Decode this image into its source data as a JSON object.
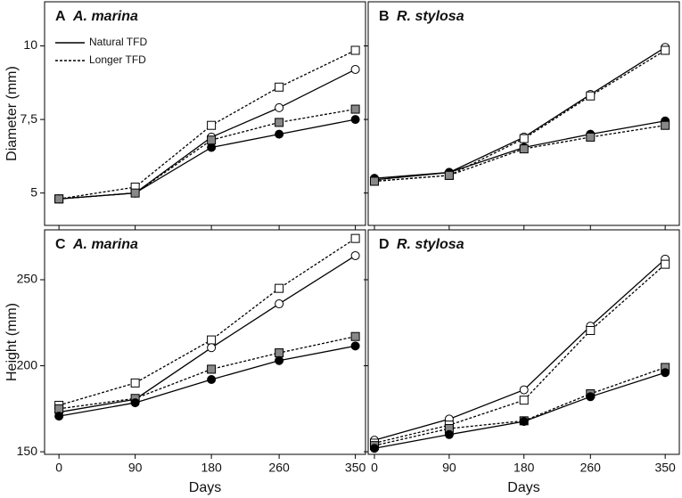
{
  "chart_data": [
    {
      "type": "line",
      "panel": "A",
      "title": "A. marina",
      "ylabel": "Diameter (mm)",
      "x": [
        0,
        90,
        180,
        260,
        350
      ],
      "xlim": [
        -17,
        362
      ],
      "xticks": [
        0,
        90,
        180,
        260,
        350
      ],
      "xtick_labels": false,
      "ylim": [
        3.9,
        11.5
      ],
      "yticks": [
        5,
        {
          "value": 7.5,
          "label": "7,5"
        },
        10
      ],
      "ytick_labels": true,
      "legend": [
        {
          "label": "Natural TFD",
          "dash": "solid"
        },
        {
          "label": "Longer TFD",
          "dash": "dashed"
        }
      ],
      "series": [
        {
          "marker": "circle",
          "fill": "#ffffff",
          "dash": "solid",
          "values": [
            4.8,
            5.0,
            6.9,
            7.9,
            9.2
          ]
        },
        {
          "marker": "circle",
          "fill": "#000000",
          "dash": "solid",
          "values": [
            4.8,
            5.0,
            6.55,
            7.0,
            7.5
          ]
        },
        {
          "marker": "square",
          "fill": "#ffffff",
          "dash": "dashed",
          "values": [
            4.8,
            5.2,
            7.3,
            8.6,
            9.85
          ]
        },
        {
          "marker": "square",
          "fill": "#888888",
          "dash": "dashed",
          "values": [
            4.8,
            5.0,
            6.8,
            7.4,
            7.85
          ]
        }
      ]
    },
    {
      "type": "line",
      "panel": "B",
      "title": "R. stylosa",
      "x": [
        0,
        90,
        180,
        260,
        350
      ],
      "xlim": [
        -7.5,
        367
      ],
      "xticks": [
        0,
        90,
        180,
        260,
        350
      ],
      "xtick_labels": false,
      "ylim": [
        3.9,
        11.5
      ],
      "yticks": [
        5,
        7.5,
        10
      ],
      "ytick_labels": false,
      "series": [
        {
          "marker": "circle",
          "fill": "#ffffff",
          "dash": "solid",
          "values": [
            5.45,
            5.7,
            6.9,
            8.35,
            9.95
          ]
        },
        {
          "marker": "square",
          "fill": "#ffffff",
          "dash": "dashed",
          "values": [
            5.4,
            5.6,
            6.85,
            8.3,
            9.85
          ]
        },
        {
          "marker": "circle",
          "fill": "#000000",
          "dash": "solid",
          "values": [
            5.5,
            5.7,
            6.55,
            7.0,
            7.45
          ]
        },
        {
          "marker": "square",
          "fill": "#888888",
          "dash": "dashed",
          "values": [
            5.4,
            5.6,
            6.5,
            6.9,
            7.3
          ]
        }
      ]
    },
    {
      "type": "line",
      "panel": "C",
      "title": "A. marina",
      "ylabel": "Height (mm)",
      "xlabel": "Days",
      "x": [
        0,
        90,
        180,
        260,
        350
      ],
      "xlim": [
        -17,
        362
      ],
      "xticks": [
        0,
        90,
        180,
        260,
        350
      ],
      "xtick_labels": true,
      "ylim": [
        148.5,
        279
      ],
      "yticks": [
        150,
        200,
        250
      ],
      "ytick_labels": true,
      "series": [
        {
          "marker": "square",
          "fill": "#ffffff",
          "dash": "dashed",
          "values": [
            177,
            190,
            215,
            245,
            274
          ]
        },
        {
          "marker": "circle",
          "fill": "#ffffff",
          "dash": "solid",
          "values": [
            173,
            180.5,
            210.5,
            236,
            264
          ]
        },
        {
          "marker": "square",
          "fill": "#888888",
          "dash": "dashed",
          "values": [
            175,
            181,
            198,
            207.5,
            217
          ]
        },
        {
          "marker": "circle",
          "fill": "#000000",
          "dash": "solid",
          "values": [
            170.7,
            178.5,
            192,
            203,
            211.5
          ]
        }
      ]
    },
    {
      "type": "line",
      "panel": "D",
      "title": "R. stylosa",
      "xlabel": "Days",
      "x": [
        0,
        90,
        180,
        260,
        350
      ],
      "xlim": [
        -7.5,
        367
      ],
      "xticks": [
        0,
        90,
        180,
        260,
        350
      ],
      "xtick_labels": true,
      "ylim": [
        148.5,
        279
      ],
      "yticks": [
        150,
        200,
        250
      ],
      "ytick_labels": false,
      "series": [
        {
          "marker": "circle",
          "fill": "#ffffff",
          "dash": "solid",
          "values": [
            156.7,
            169,
            186,
            223,
            262
          ]
        },
        {
          "marker": "square",
          "fill": "#ffffff",
          "dash": "dashed",
          "values": [
            155,
            165.5,
            180,
            220.5,
            259
          ]
        },
        {
          "marker": "square",
          "fill": "#888888",
          "dash": "dashed",
          "values": [
            153.6,
            163.5,
            168,
            183.7,
            199
          ]
        },
        {
          "marker": "circle",
          "fill": "#000000",
          "dash": "solid",
          "values": [
            152,
            160,
            167.6,
            182,
            196
          ]
        }
      ]
    }
  ]
}
